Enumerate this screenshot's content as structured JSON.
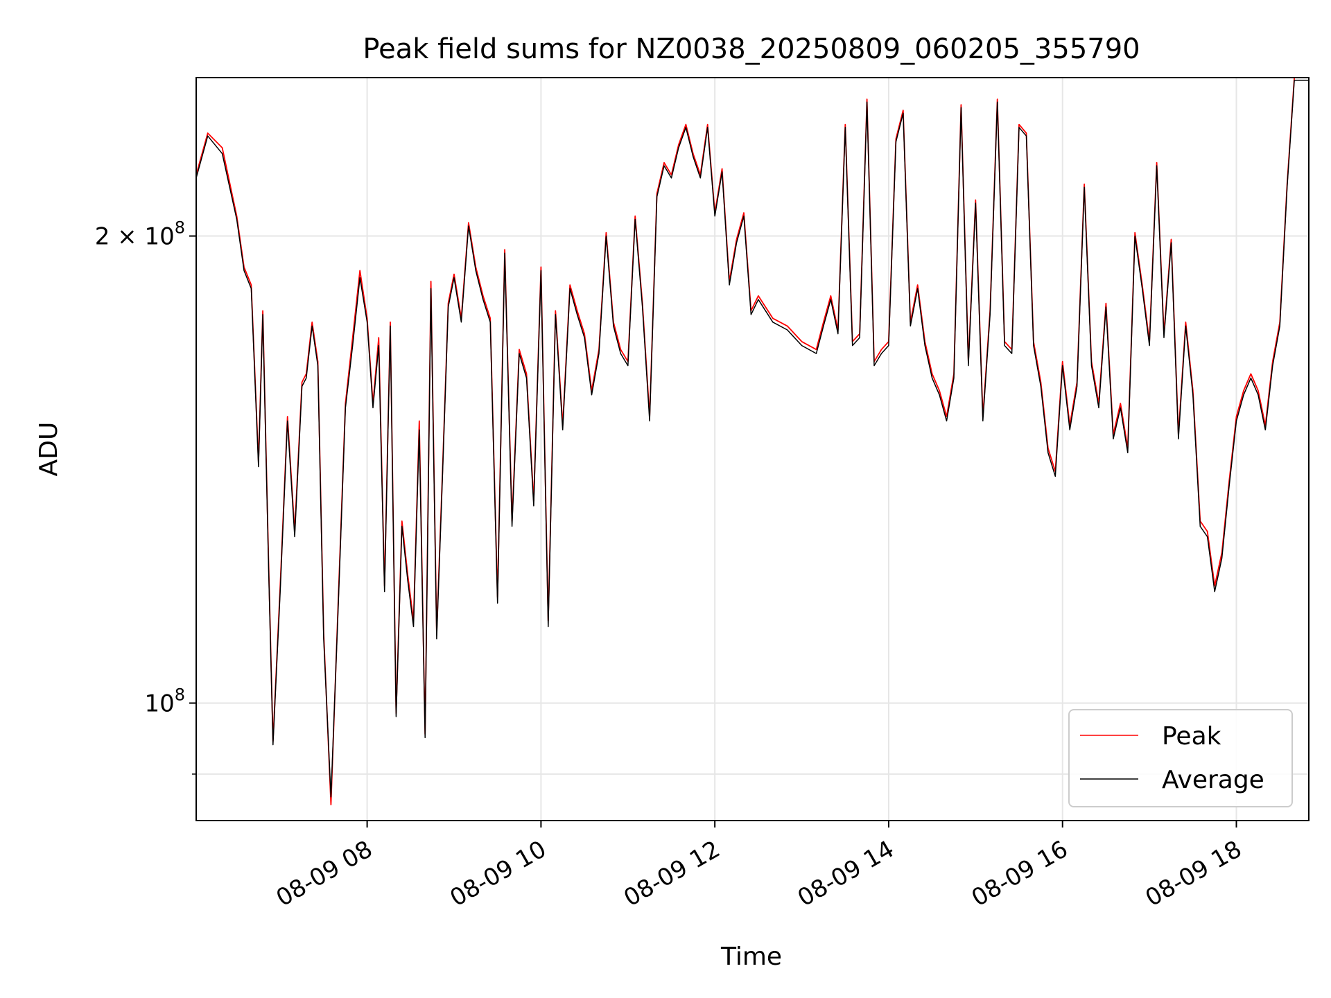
{
  "chart_data": {
    "type": "line",
    "title": "Peak field sums for NZ0038_20250809_060205_355790",
    "xlabel": "Time",
    "ylabel": "ADU",
    "y_scale": "log",
    "ylim": [
      84000000,
      253000000
    ],
    "xlim": [
      "2025-08-09 06:02",
      "2025-08-09 18:50"
    ],
    "x_ticks": [
      {
        "value": "2025-08-09 08:00",
        "label": "08-09 08"
      },
      {
        "value": "2025-08-09 10:00",
        "label": "08-09 10"
      },
      {
        "value": "2025-08-09 12:00",
        "label": "08-09 12"
      },
      {
        "value": "2025-08-09 14:00",
        "label": "08-09 14"
      },
      {
        "value": "2025-08-09 16:00",
        "label": "08-09 16"
      },
      {
        "value": "2025-08-09 18:00",
        "label": "08-09 18"
      }
    ],
    "y_ticks": [
      {
        "value": 200000000,
        "label": "2 × 10⁸",
        "mantissa": "2 × 10",
        "exponent": "8"
      },
      {
        "value": 100000000,
        "label": "10⁸",
        "mantissa": "10",
        "exponent": "8"
      }
    ],
    "y_minor_gridlines": [
      90000000
    ],
    "grid": true,
    "legend_position": "lower-right",
    "series": [
      {
        "name": "Peak",
        "color": "#ff0000"
      },
      {
        "name": "Average",
        "color": "#000000"
      }
    ],
    "x": [
      "2025-08-09 06:02",
      "2025-08-09 06:10",
      "2025-08-09 06:20",
      "2025-08-09 06:30",
      "2025-08-09 06:35",
      "2025-08-09 06:40",
      "2025-08-09 06:45",
      "2025-08-09 06:48",
      "2025-08-09 06:52",
      "2025-08-09 06:55",
      "2025-08-09 07:00",
      "2025-08-09 07:05",
      "2025-08-09 07:10",
      "2025-08-09 07:15",
      "2025-08-09 07:18",
      "2025-08-09 07:22",
      "2025-08-09 07:26",
      "2025-08-09 07:30",
      "2025-08-09 07:35",
      "2025-08-09 07:40",
      "2025-08-09 07:45",
      "2025-08-09 07:50",
      "2025-08-09 07:55",
      "2025-08-09 08:00",
      "2025-08-09 08:04",
      "2025-08-09 08:08",
      "2025-08-09 08:12",
      "2025-08-09 08:16",
      "2025-08-09 08:20",
      "2025-08-09 08:24",
      "2025-08-09 08:28",
      "2025-08-09 08:32",
      "2025-08-09 08:36",
      "2025-08-09 08:40",
      "2025-08-09 08:44",
      "2025-08-09 08:48",
      "2025-08-09 08:52",
      "2025-08-09 08:56",
      "2025-08-09 09:00",
      "2025-08-09 09:05",
      "2025-08-09 09:10",
      "2025-08-09 09:15",
      "2025-08-09 09:20",
      "2025-08-09 09:25",
      "2025-08-09 09:30",
      "2025-08-09 09:35",
      "2025-08-09 09:40",
      "2025-08-09 09:45",
      "2025-08-09 09:50",
      "2025-08-09 09:55",
      "2025-08-09 10:00",
      "2025-08-09 10:05",
      "2025-08-09 10:10",
      "2025-08-09 10:15",
      "2025-08-09 10:20",
      "2025-08-09 10:25",
      "2025-08-09 10:30",
      "2025-08-09 10:35",
      "2025-08-09 10:40",
      "2025-08-09 10:45",
      "2025-08-09 10:50",
      "2025-08-09 10:55",
      "2025-08-09 11:00",
      "2025-08-09 11:05",
      "2025-08-09 11:10",
      "2025-08-09 11:15",
      "2025-08-09 11:20",
      "2025-08-09 11:25",
      "2025-08-09 11:30",
      "2025-08-09 11:35",
      "2025-08-09 11:40",
      "2025-08-09 11:45",
      "2025-08-09 11:50",
      "2025-08-09 11:55",
      "2025-08-09 12:00",
      "2025-08-09 12:05",
      "2025-08-09 12:10",
      "2025-08-09 12:15",
      "2025-08-09 12:20",
      "2025-08-09 12:25",
      "2025-08-09 12:30",
      "2025-08-09 12:40",
      "2025-08-09 12:50",
      "2025-08-09 13:00",
      "2025-08-09 13:10",
      "2025-08-09 13:15",
      "2025-08-09 13:20",
      "2025-08-09 13:25",
      "2025-08-09 13:30",
      "2025-08-09 13:35",
      "2025-08-09 13:40",
      "2025-08-09 13:45",
      "2025-08-09 13:50",
      "2025-08-09 13:55",
      "2025-08-09 14:00",
      "2025-08-09 14:05",
      "2025-08-09 14:10",
      "2025-08-09 14:15",
      "2025-08-09 14:20",
      "2025-08-09 14:25",
      "2025-08-09 14:30",
      "2025-08-09 14:35",
      "2025-08-09 14:40",
      "2025-08-09 14:45",
      "2025-08-09 14:50",
      "2025-08-09 14:55",
      "2025-08-09 15:00",
      "2025-08-09 15:05",
      "2025-08-09 15:10",
      "2025-08-09 15:15",
      "2025-08-09 15:20",
      "2025-08-09 15:25",
      "2025-08-09 15:30",
      "2025-08-09 15:35",
      "2025-08-09 15:40",
      "2025-08-09 15:45",
      "2025-08-09 15:50",
      "2025-08-09 15:55",
      "2025-08-09 16:00",
      "2025-08-09 16:05",
      "2025-08-09 16:10",
      "2025-08-09 16:15",
      "2025-08-09 16:20",
      "2025-08-09 16:25",
      "2025-08-09 16:30",
      "2025-08-09 16:35",
      "2025-08-09 16:40",
      "2025-08-09 16:45",
      "2025-08-09 16:50",
      "2025-08-09 16:55",
      "2025-08-09 17:00",
      "2025-08-09 17:05",
      "2025-08-09 17:10",
      "2025-08-09 17:15",
      "2025-08-09 17:20",
      "2025-08-09 17:25",
      "2025-08-09 17:30",
      "2025-08-09 17:35",
      "2025-08-09 17:40",
      "2025-08-09 17:45",
      "2025-08-09 17:50",
      "2025-08-09 17:55",
      "2025-08-09 18:00",
      "2025-08-09 18:05",
      "2025-08-09 18:10",
      "2025-08-09 18:15",
      "2025-08-09 18:20",
      "2025-08-09 18:25",
      "2025-08-09 18:30",
      "2025-08-09 18:35",
      "2025-08-09 18:40",
      "2025-08-09 18:45",
      "2025-08-09 18:50"
    ],
    "average": [
      218000000,
      232000000,
      226000000,
      205000000,
      190000000,
      185000000,
      142000000,
      178000000,
      122000000,
      94000000,
      118000000,
      152000000,
      128000000,
      160000000,
      162000000,
      175000000,
      165000000,
      110000000,
      87000000,
      115000000,
      155000000,
      170000000,
      188000000,
      176000000,
      155000000,
      170000000,
      118000000,
      175000000,
      98000000,
      130000000,
      120000000,
      112000000,
      150000000,
      95000000,
      185000000,
      110000000,
      140000000,
      180000000,
      188000000,
      176000000,
      203000000,
      190000000,
      182000000,
      176000000,
      116000000,
      195000000,
      130000000,
      168000000,
      162000000,
      134000000,
      190000000,
      112000000,
      178000000,
      150000000,
      185000000,
      178000000,
      172000000,
      158000000,
      168000000,
      200000000,
      175000000,
      168000000,
      165000000,
      205000000,
      180000000,
      152000000,
      212000000,
      222000000,
      218000000,
      228000000,
      235000000,
      225000000,
      218000000,
      235000000,
      206000000,
      220000000,
      186000000,
      198000000,
      206000000,
      178000000,
      182000000,
      176000000,
      174000000,
      170000000,
      168000000,
      175000000,
      182000000,
      173000000,
      235000000,
      170000000,
      172000000,
      244000000,
      165000000,
      168000000,
      170000000,
      230000000,
      240000000,
      175000000,
      185000000,
      170000000,
      162000000,
      158000000,
      152000000,
      162000000,
      242000000,
      165000000,
      210000000,
      152000000,
      178000000,
      244000000,
      170000000,
      168000000,
      235000000,
      232000000,
      170000000,
      160000000,
      145000000,
      140000000,
      165000000,
      150000000,
      160000000,
      215000000,
      165000000,
      155000000,
      180000000,
      148000000,
      155000000,
      145000000,
      200000000,
      185000000,
      170000000,
      222000000,
      172000000,
      198000000,
      148000000,
      175000000,
      158000000,
      130000000,
      128000000,
      118000000,
      124000000,
      138000000,
      152000000,
      158000000,
      162000000,
      158000000,
      150000000,
      165000000,
      175000000,
      215000000,
      252000000,
      252000000,
      252000000
    ],
    "peak": [
      219000000,
      233000000,
      228000000,
      206000000,
      191000000,
      186000000,
      143000000,
      179000000,
      123000000,
      94500000,
      119000000,
      153000000,
      129000000,
      161000000,
      163000000,
      176000000,
      166000000,
      111000000,
      86000000,
      116000000,
      156000000,
      172000000,
      190000000,
      177000000,
      156000000,
      172000000,
      119000000,
      176000000,
      98500000,
      131000000,
      121000000,
      113000000,
      152000000,
      95500000,
      187000000,
      111000000,
      141000000,
      181000000,
      189000000,
      177000000,
      204000000,
      191000000,
      183000000,
      177000000,
      117000000,
      196000000,
      131000000,
      169000000,
      163000000,
      135000000,
      191000000,
      113000000,
      179000000,
      151000000,
      186000000,
      179000000,
      173000000,
      159000000,
      169000000,
      201000000,
      176000000,
      169000000,
      166000000,
      206000000,
      181000000,
      153000000,
      213000000,
      223000000,
      219000000,
      229000000,
      236000000,
      226000000,
      219000000,
      236000000,
      207000000,
      221000000,
      187000000,
      199000000,
      207000000,
      179000000,
      183000000,
      177000000,
      175000000,
      171000000,
      169000000,
      176000000,
      183000000,
      174000000,
      236000000,
      171000000,
      173000000,
      245000000,
      166000000,
      169000000,
      171000000,
      231000000,
      241000000,
      176000000,
      186000000,
      171000000,
      163000000,
      159000000,
      153000000,
      163000000,
      243000000,
      166000000,
      211000000,
      153000000,
      179000000,
      245000000,
      171000000,
      169000000,
      236000000,
      233000000,
      171000000,
      161000000,
      146000000,
      141000000,
      166000000,
      151000000,
      161000000,
      216000000,
      166000000,
      156000000,
      181000000,
      149000000,
      156000000,
      146000000,
      201000000,
      186000000,
      171000000,
      223000000,
      173000000,
      199000000,
      149000000,
      176000000,
      159000000,
      131000000,
      129000000,
      119000000,
      125000000,
      139000000,
      153000000,
      159000000,
      163000000,
      159000000,
      151000000,
      166000000,
      176000000,
      216000000,
      253000000,
      253000000,
      253000000
    ]
  }
}
